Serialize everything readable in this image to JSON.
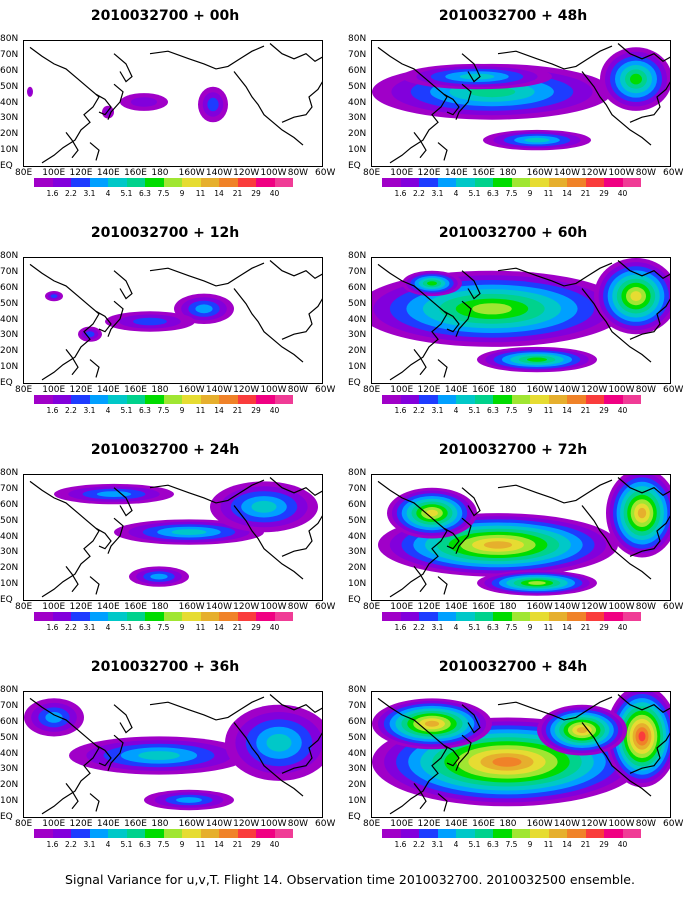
{
  "figure": {
    "caption": "Signal Variance for u,v,T. Flight 14. Observation time 2010032700. 2010032500 ensemble."
  },
  "axes": {
    "lat_labels": [
      "80N",
      "70N",
      "60N",
      "50N",
      "40N",
      "30N",
      "20N",
      "10N",
      "EQ"
    ],
    "lon_labels": [
      "80E",
      "100E",
      "120E",
      "140E",
      "160E",
      "180",
      "160W",
      "140W",
      "120W",
      "100W",
      "80W",
      "60W"
    ]
  },
  "colorbar": {
    "levels": [
      "1.6",
      "2.2",
      "3.1",
      "4",
      "5.1",
      "6.3",
      "7.5",
      "9",
      "11",
      "14",
      "21",
      "29",
      "40"
    ],
    "colors": [
      "#a000c8",
      "#8200dc",
      "#1e3cff",
      "#00a0ff",
      "#00c8c8",
      "#00d28c",
      "#00dc00",
      "#a0e632",
      "#e6dc32",
      "#e6af2d",
      "#f08228",
      "#fa3c3c",
      "#f00082"
    ]
  },
  "panels": [
    {
      "title": "2010032700 + 00h",
      "intensity": 0
    },
    {
      "title": "2010032700 + 48h",
      "intensity": 3
    },
    {
      "title": "2010032700 + 12h",
      "intensity": 1
    },
    {
      "title": "2010032700 + 60h",
      "intensity": 4
    },
    {
      "title": "2010032700 + 24h",
      "intensity": 2
    },
    {
      "title": "2010032700 + 72h",
      "intensity": 5
    },
    {
      "title": "2010032700 + 36h",
      "intensity": 2
    },
    {
      "title": "2010032700 + 84h",
      "intensity": 6
    }
  ]
}
